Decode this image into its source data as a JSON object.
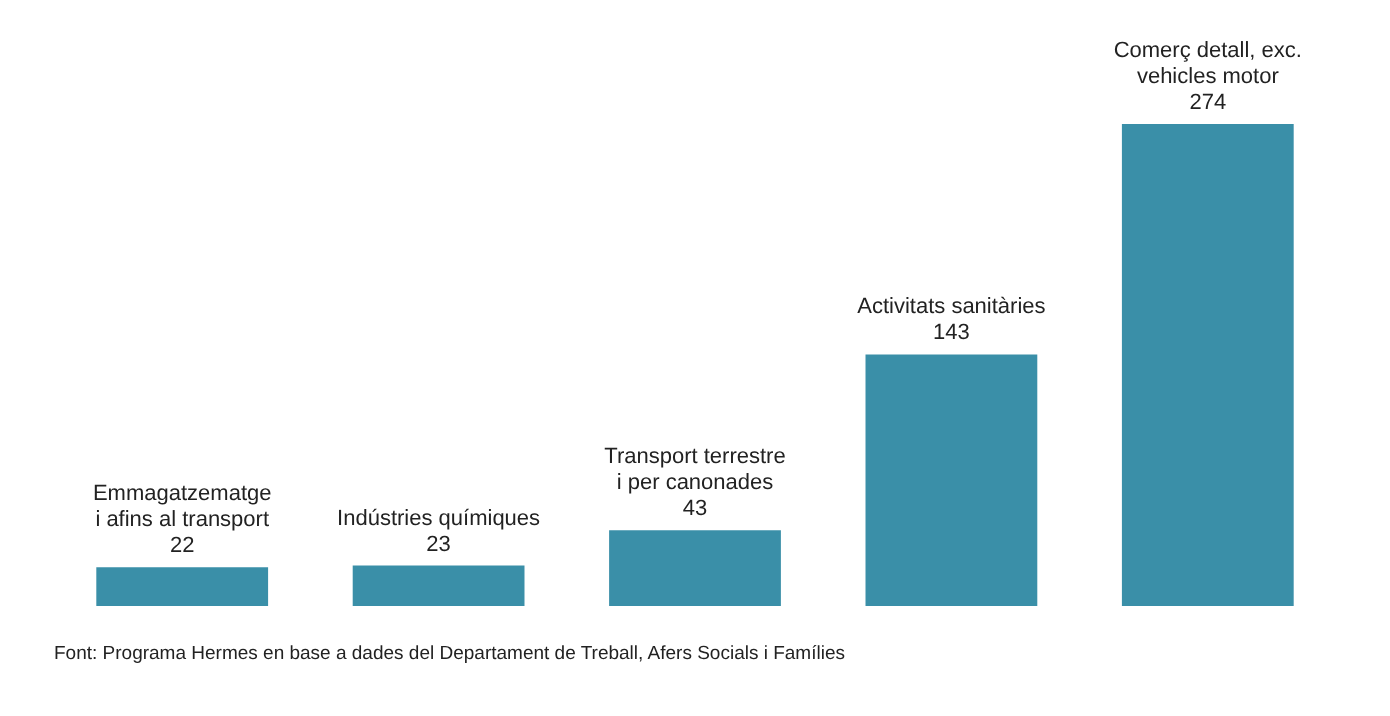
{
  "chart_data": {
    "type": "bar",
    "categories": [
      "Emmagatzematge\ni afins al transport",
      "Indústries químiques",
      "Transport terrestre\ni per canonades",
      "Activitats sanitàries",
      "Comerç detall, exc.\nvehicles motor"
    ],
    "values": [
      22,
      23,
      43,
      143,
      274
    ],
    "color": "#3a8fa8",
    "data_labels": true,
    "annotations": [
      "Font: Programa Hermes en base a dades del Departament de Treball, Afers Socials i Famílies"
    ]
  }
}
